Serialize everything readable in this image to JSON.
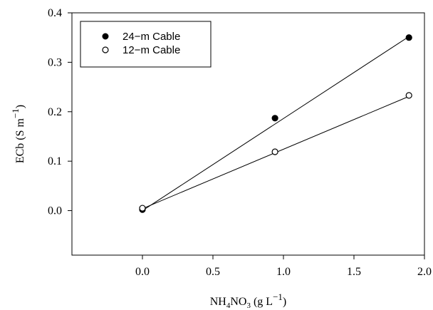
{
  "chart_data": {
    "type": "scatter",
    "xlabel": {
      "pre": "NH",
      "sub1": "4",
      "mid": "NO",
      "sub2": "3",
      "post": " (g L",
      "sup": "−1",
      "end": ")"
    },
    "ylabel": {
      "pre": "ECb (S m",
      "sup": "−1",
      "end": ")"
    },
    "xlim": [
      -0.5,
      2.0
    ],
    "ylim": [
      -0.09,
      0.4
    ],
    "x_ticks": [
      0.0,
      0.5,
      1.0,
      1.5,
      2.0
    ],
    "x_tick_labels": [
      "0.0",
      "0.5",
      "1.0",
      "1.5",
      "2.0"
    ],
    "y_ticks": [
      0.0,
      0.1,
      0.2,
      0.3,
      0.4
    ],
    "y_tick_labels": [
      "0.0",
      "0.1",
      "0.2",
      "0.3",
      "0.4"
    ],
    "grid": false,
    "legend_position": "top-left",
    "series": [
      {
        "name": "24−m Cable",
        "marker": "filled-circle",
        "color": "#000000",
        "x": [
          0.0,
          0.94,
          1.89
        ],
        "y": [
          0.002,
          0.187,
          0.35
        ],
        "fit_line": {
          "x": [
            0.0,
            1.89
          ],
          "y": [
            0.0,
            0.352
          ]
        }
      },
      {
        "name": "12−m Cable",
        "marker": "open-circle",
        "color": "#000000",
        "x": [
          0.0,
          0.94,
          1.89
        ],
        "y": [
          0.005,
          0.119,
          0.233
        ],
        "fit_line": {
          "x": [
            0.0,
            1.89
          ],
          "y": [
            0.004,
            0.231
          ]
        }
      }
    ]
  }
}
